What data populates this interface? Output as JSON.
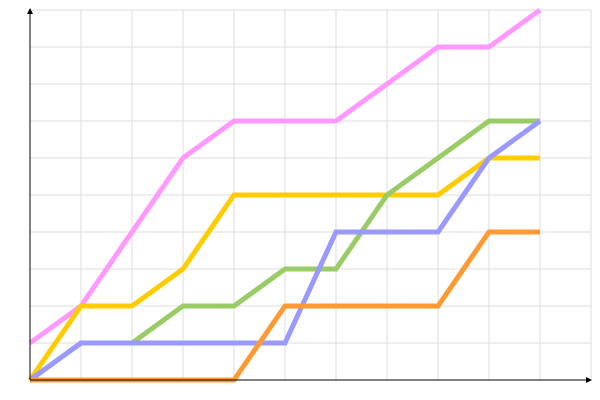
{
  "chart_data": {
    "type": "line",
    "title": "",
    "xlabel": "",
    "ylabel": "",
    "x": [
      0,
      1,
      2,
      3,
      4,
      5,
      6,
      7,
      8,
      9,
      10
    ],
    "xlim": [
      0,
      11
    ],
    "ylim": [
      0,
      10
    ],
    "grid": true,
    "legend": "none",
    "series": [
      {
        "color": "#ff99ff",
        "values": [
          1,
          2,
          4,
          6,
          7,
          7,
          7,
          8,
          9,
          9,
          10
        ]
      },
      {
        "color": "#ffcc00",
        "values": [
          0,
          2,
          2,
          3,
          5,
          5,
          5,
          5,
          5,
          6,
          6
        ]
      },
      {
        "color": "#99cc66",
        "values": [
          0,
          1,
          1,
          2,
          2,
          3,
          3,
          5,
          6,
          7,
          7
        ]
      },
      {
        "color": "#9999ff",
        "values": [
          0,
          1,
          1,
          1,
          1,
          1,
          4,
          4,
          4,
          6,
          7
        ]
      },
      {
        "color": "#ff9933",
        "values": [
          0,
          0,
          0,
          0,
          0,
          2,
          2,
          2,
          2,
          4,
          4
        ]
      }
    ]
  }
}
